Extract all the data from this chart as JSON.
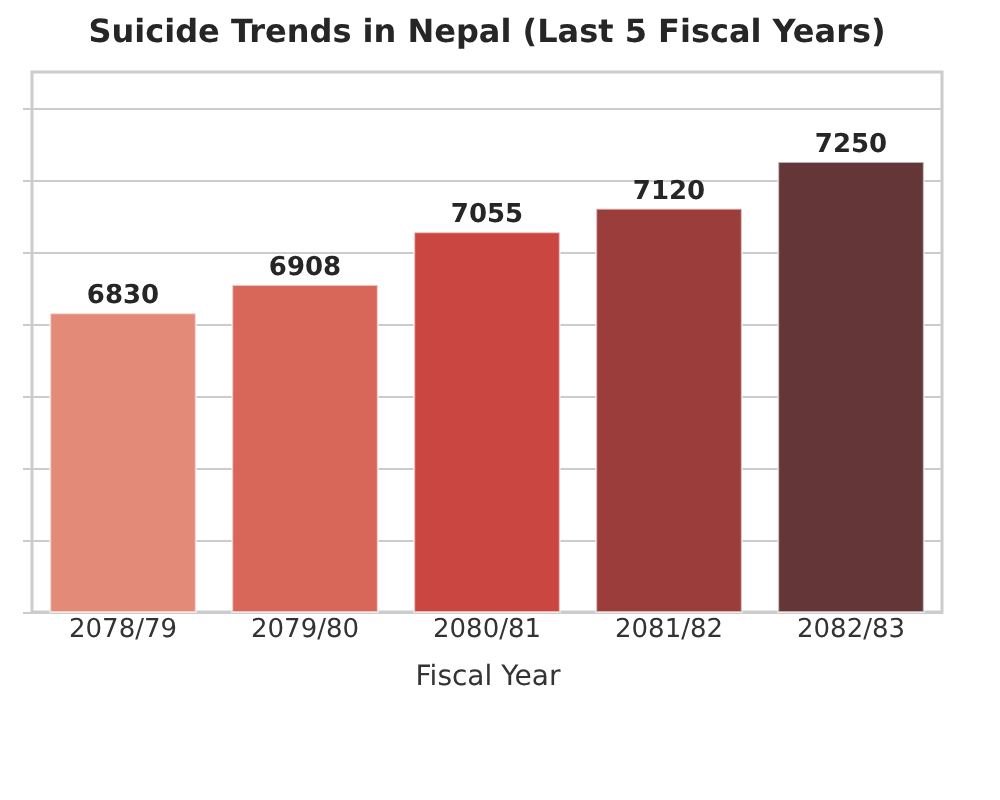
{
  "chart_data": {
    "type": "bar",
    "title": "Suicide Trends in Nepal (Last 5 Fiscal Years)",
    "xlabel": "Fiscal Year",
    "categories": [
      "2078/79",
      "2079/80",
      "2080/81",
      "2081/82",
      "2082/83"
    ],
    "values": [
      6830,
      6908,
      7055,
      7120,
      7250
    ],
    "colors": [
      "#e48a78",
      "#d8675a",
      "#ca4640",
      "#9a3d3b",
      "#653637"
    ],
    "ylim": [
      6000,
      7500
    ],
    "yticks": [
      {
        "value": 6000,
        "label": null
      },
      {
        "value": 6200,
        "label": null
      },
      {
        "value": 6400,
        "label": null
      },
      {
        "value": 6600,
        "label": null
      },
      {
        "value": 6800,
        "label": null
      },
      {
        "value": 7000,
        "label": null
      },
      {
        "value": 7200,
        "label": null
      },
      {
        "value": 7400,
        "label": null
      }
    ],
    "data_labels": true,
    "grid": "y",
    "tick_labels": "x"
  }
}
